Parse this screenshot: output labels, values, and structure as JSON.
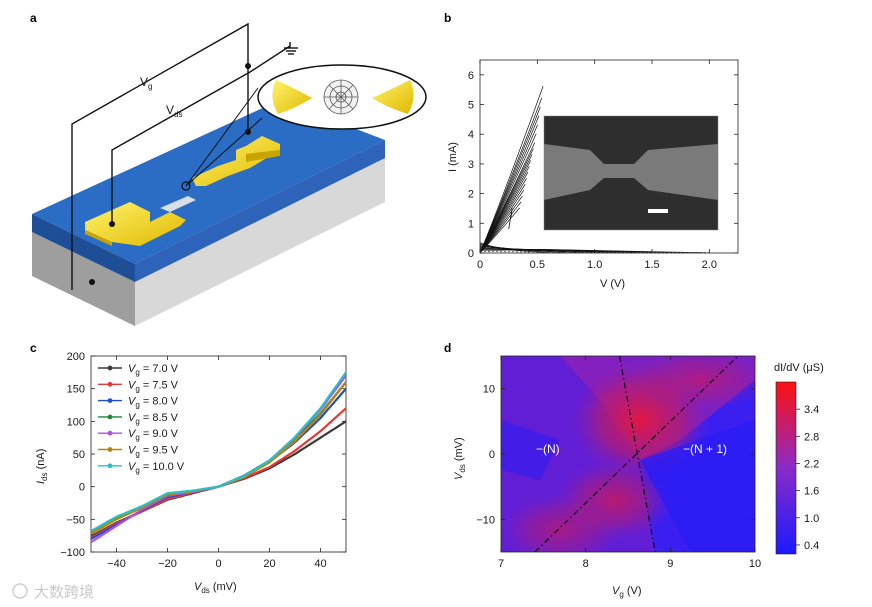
{
  "panels": {
    "a": {
      "letter": "a",
      "label_vg": "V",
      "label_vg_sub": "g",
      "label_vds": "V",
      "label_vds_sub": "ds"
    },
    "b": {
      "letter": "b"
    },
    "c": {
      "letter": "c"
    },
    "d": {
      "letter": "d"
    }
  },
  "watermark": "大数跨境",
  "colors": {
    "oxide": "#2b6cc4",
    "oxide_side": "#1e4f96",
    "substrate": "#bdbdbd",
    "gold": "#f4d21a"
  },
  "chart_data": [
    {
      "id": "b",
      "type": "line",
      "xlabel": "V (V)",
      "ylabel": "I (mA)",
      "xlim": [
        0,
        2.25
      ],
      "ylim": [
        0,
        6.5
      ],
      "xticks": [
        0,
        0.5,
        1.0,
        1.5,
        2.0
      ],
      "xtick_labels": [
        "0",
        "0.5",
        "1.0",
        "1.5",
        "2.0"
      ],
      "yticks": [
        0,
        1,
        2,
        3,
        4,
        5,
        6
      ],
      "ytick_labels": [
        "0",
        "1",
        "2",
        "3",
        "4",
        "5",
        "6"
      ],
      "sweeps_end_current_mA": [
        5.6,
        5.2,
        4.9,
        4.6,
        4.3,
        4.0,
        3.7,
        3.5,
        3.3,
        3.1,
        2.9,
        2.7,
        2.5,
        2.3,
        2.1,
        1.9,
        1.7,
        1.5
      ],
      "sweep_end_voltage_V": 0.55,
      "tail_series": {
        "x": [
          0,
          0.3,
          0.6,
          1.0,
          1.5,
          2.0
        ],
        "y": [
          0.05,
          0.04,
          0.03,
          0.02,
          0.02,
          0.02
        ]
      },
      "inset": "SEM image of nanogap"
    },
    {
      "id": "c",
      "type": "line",
      "xlabel": "V",
      "xlabel_sub": "ds",
      "xlabel_unit": " (mV)",
      "ylabel": "I",
      "ylabel_sub": "ds",
      "ylabel_unit": " (nA)",
      "xlim": [
        -50,
        50
      ],
      "ylim": [
        -100,
        200
      ],
      "xticks": [
        -40,
        -20,
        0,
        20,
        40
      ],
      "xtick_labels": [
        "−40",
        "−20",
        "0",
        "20",
        "40"
      ],
      "yticks": [
        -100,
        -50,
        0,
        50,
        100,
        150,
        200
      ],
      "ytick_labels": [
        "−100",
        "−50",
        "0",
        "50",
        "100",
        "150",
        "200"
      ],
      "x": [
        -50,
        -40,
        -30,
        -20,
        -10,
        0,
        10,
        20,
        30,
        40,
        50
      ],
      "series": [
        {
          "name": "V",
          "sub": "g",
          "eq": " = 7.0 V",
          "color": "#3a3a3a",
          "values": [
            -76,
            -55,
            -38,
            -20,
            -10,
            0,
            12,
            28,
            50,
            75,
            100
          ]
        },
        {
          "name": "V",
          "sub": "g",
          "eq": " = 7.5 V",
          "color": "#e53935",
          "values": [
            -78,
            -56,
            -38,
            -19,
            -9,
            0,
            13,
            30,
            55,
            85,
            120
          ]
        },
        {
          "name": "V",
          "sub": "g",
          "eq": " = 8.0 V",
          "color": "#1e50c8",
          "values": [
            -80,
            -58,
            -36,
            -16,
            -8,
            0,
            16,
            38,
            68,
            105,
            150
          ]
        },
        {
          "name": "V",
          "sub": "g",
          "eq": " = 8.5 V",
          "color": "#1b8a3a",
          "values": [
            -70,
            -48,
            -30,
            -12,
            -7,
            0,
            17,
            40,
            72,
            112,
            160
          ]
        },
        {
          "name": "V",
          "sub": "g",
          "eq": " = 9.0 V",
          "color": "#b050e0",
          "values": [
            -85,
            -60,
            -35,
            -14,
            -8,
            0,
            16,
            40,
            75,
            118,
            170
          ]
        },
        {
          "name": "V",
          "sub": "g",
          "eq": " = 9.5 V",
          "color": "#b8860b",
          "values": [
            -72,
            -50,
            -32,
            -12,
            -7,
            0,
            15,
            37,
            70,
            110,
            160
          ]
        },
        {
          "name": "V",
          "sub": "g",
          "eq": " = 10.0 V",
          "color": "#27c0c9",
          "values": [
            -68,
            -46,
            -30,
            -10,
            -6,
            0,
            16,
            40,
            76,
            120,
            175
          ]
        }
      ]
    },
    {
      "id": "d",
      "type": "heatmap",
      "xlabel": "V",
      "xlabel_sub": "g",
      "xlabel_unit": " (V)",
      "ylabel": "V",
      "ylabel_sub": "ds",
      "ylabel_unit": " (mV)",
      "xlim": [
        7,
        10
      ],
      "ylim": [
        -15,
        15
      ],
      "xticks": [
        7,
        8,
        9,
        10
      ],
      "xtick_labels": [
        "7",
        "8",
        "9",
        "10"
      ],
      "yticks": [
        -10,
        0,
        10
      ],
      "ytick_labels": [
        "−10",
        "0",
        "10"
      ],
      "colorbar": {
        "title": "dI/dV (μS)",
        "range": [
          0.2,
          4.0
        ],
        "ticks": [
          3.4,
          2.8,
          2.2,
          1.6,
          1.0,
          0.4
        ],
        "tick_labels": [
          "3.4",
          "2.8",
          "2.2",
          "1.6",
          "1.0",
          "0.4"
        ]
      },
      "degeneracy_point": [
        8.6,
        0
      ],
      "line1": [
        [
          8.4,
          15
        ],
        [
          8.82,
          -15
        ]
      ],
      "line2": [
        [
          7.4,
          -15
        ],
        [
          9.8,
          15
        ]
      ],
      "region_left": "−(N)",
      "region_right": "−(N + 1)"
    }
  ]
}
